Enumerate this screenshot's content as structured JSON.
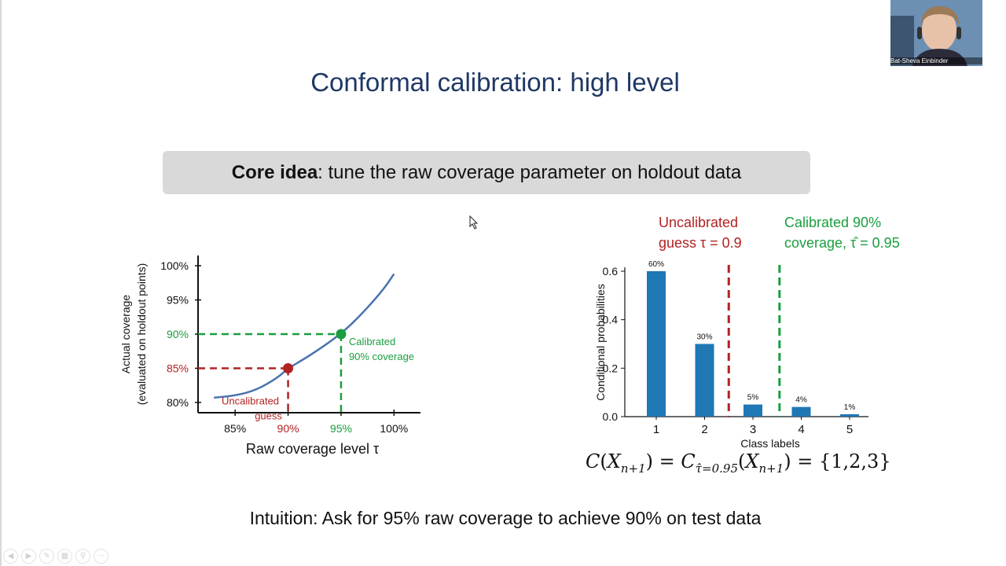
{
  "slide": {
    "title": "Conformal calibration: high level",
    "core_idea_bold": "Core idea",
    "core_idea_rest": ": tune the raw coverage parameter on holdout data",
    "intuition": "Intuition: Ask for 95% raw coverage to achieve 90% on test data"
  },
  "presenter": {
    "name": "Bat-Sheva Einbinder"
  },
  "annotations": {
    "uncalibrated_line1": "Uncalibrated",
    "uncalibrated_line2": "guess τ = 0.9",
    "calibrated_line1": "Calibrated 90%",
    "calibrated_line2": "coverage, τ̂ = 0.95"
  },
  "formula": {
    "c": "C",
    "x1": "X",
    "sub1": "n+1",
    "eq1": ") = ",
    "c2": "C",
    "sub2": "τ̂=0.95",
    "x2": "X",
    "sub3": "n+1",
    "eq2": ") = {1,2,3}"
  },
  "colors": {
    "title": "#1f3864",
    "red": "#b22222",
    "green": "#1a9e3f",
    "curve": "#4a72b0",
    "bar": "#1f77b4"
  },
  "chart_data": [
    {
      "type": "line",
      "xlabel": "Raw coverage level τ",
      "ylabel": "Actual coverage",
      "ylabel2": "(evaluated on holdout points)",
      "x_ticks": [
        "85%",
        "90%",
        "95%",
        "100%"
      ],
      "y_ticks": [
        "80%",
        "85%",
        "90%",
        "95%",
        "100%"
      ],
      "x": [
        83,
        85,
        87,
        89,
        90,
        92,
        95,
        97,
        99,
        100
      ],
      "y": [
        80.7,
        81.0,
        81.8,
        83.6,
        85.0,
        86.8,
        90.0,
        93.0,
        96.5,
        98.8
      ],
      "xlim": [
        81.5,
        102.5
      ],
      "ylim": [
        78.5,
        101.5
      ],
      "highlights": [
        {
          "x": 90,
          "y": 85,
          "color": "#b22222",
          "label_line1": "Uncalibrated",
          "label_line2": "guess"
        },
        {
          "x": 95,
          "y": 90,
          "color": "#1a9e3f",
          "label_line1": "Calibrated",
          "label_line2": "90% coverage"
        }
      ]
    },
    {
      "type": "bar",
      "categories": [
        "1",
        "2",
        "3",
        "4",
        "5"
      ],
      "values": [
        0.6,
        0.3,
        0.05,
        0.04,
        0.01
      ],
      "data_labels": [
        "60%",
        "30%",
        "5%",
        "4%",
        "1%"
      ],
      "xlabel": "Class labels",
      "ylabel": "Conditional probabilities",
      "y_ticks": [
        "0.0",
        "0.2",
        "0.4",
        "0.6"
      ],
      "ylim": [
        0,
        0.6
      ],
      "vlines": [
        {
          "x": 2.5,
          "color": "#b22222"
        },
        {
          "x": 3.55,
          "color": "#1a9e3f"
        }
      ]
    }
  ]
}
